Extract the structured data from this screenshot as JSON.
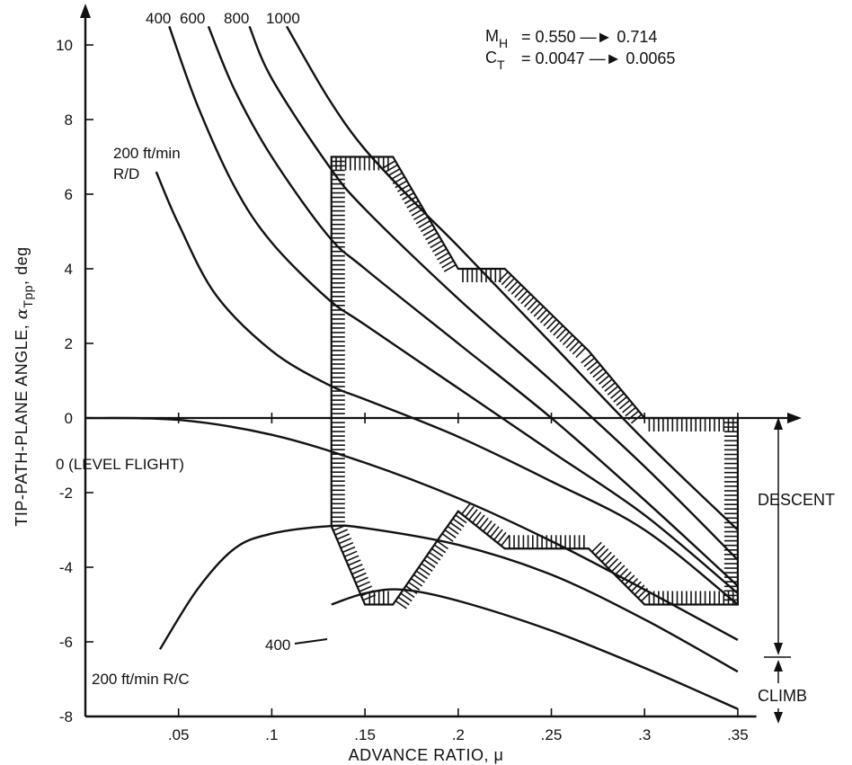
{
  "chart_data": {
    "type": "line",
    "xlabel": "ADVANCE RATIO, μ",
    "ylabel_main": "TIP-PATH-PLANE ANGLE, ",
    "ylabel_alpha": "α",
    "ylabel_sub": "Tpp",
    "ylabel_tail": ", deg",
    "xlim": [
      0,
      0.36
    ],
    "ylim": [
      -8,
      10.5
    ],
    "x_ticks": [
      {
        "v": 0.05,
        "label": ".05"
      },
      {
        "v": 0.1,
        "label": ".1"
      },
      {
        "v": 0.15,
        "label": ".15"
      },
      {
        "v": 0.2,
        "label": ".2"
      },
      {
        "v": 0.25,
        "label": ".25"
      },
      {
        "v": 0.3,
        "label": ".3"
      },
      {
        "v": 0.35,
        "label": ".35"
      }
    ],
    "y_ticks": [
      {
        "v": 10,
        "label": "10"
      },
      {
        "v": 8,
        "label": "8"
      },
      {
        "v": 6,
        "label": "6"
      },
      {
        "v": 4,
        "label": "4"
      },
      {
        "v": 2,
        "label": "2"
      },
      {
        "v": 0,
        "label": "0"
      },
      {
        "v": -2,
        "label": "-2"
      },
      {
        "v": -4,
        "label": "-4"
      },
      {
        "v": -6,
        "label": "-6"
      },
      {
        "v": -8,
        "label": "-8"
      }
    ],
    "series": [
      {
        "name": "1000",
        "x": [
          0.108,
          0.13,
          0.15,
          0.18,
          0.2,
          0.25,
          0.3,
          0.35
        ],
        "y": [
          10.5,
          8.6,
          7.2,
          5.6,
          4.6,
          2.0,
          -0.6,
          -3.0
        ]
      },
      {
        "name": "800",
        "x": [
          0.088,
          0.1,
          0.13,
          0.15,
          0.2,
          0.25,
          0.3,
          0.35
        ],
        "y": [
          10.5,
          9.1,
          6.8,
          5.6,
          3.2,
          1.0,
          -1.3,
          -3.8
        ]
      },
      {
        "name": "600",
        "x": [
          0.066,
          0.08,
          0.1,
          0.13,
          0.15,
          0.2,
          0.25,
          0.3,
          0.35
        ],
        "y": [
          10.5,
          8.8,
          7.0,
          4.9,
          4.0,
          2.0,
          0.0,
          -2.2,
          -4.5
        ]
      },
      {
        "name": "400",
        "x": [
          0.045,
          0.06,
          0.08,
          0.1,
          0.13,
          0.15,
          0.2,
          0.25,
          0.3,
          0.35
        ],
        "y": [
          10.5,
          8.4,
          6.2,
          4.7,
          3.2,
          2.5,
          0.8,
          -0.9,
          -2.6,
          -4.7
        ]
      },
      {
        "name": "200 ft/min R/D",
        "x": [
          0.038,
          0.05,
          0.07,
          0.1,
          0.13,
          0.15,
          0.2,
          0.25,
          0.3,
          0.35
        ],
        "y": [
          6.6,
          5.2,
          3.3,
          1.8,
          0.9,
          0.5,
          -0.5,
          -1.7,
          -3.0,
          -5.0
        ]
      },
      {
        "name": "0 (LEVEL FLIGHT)",
        "x": [
          0.0,
          0.05,
          0.1,
          0.15,
          0.2,
          0.25,
          0.3,
          0.35
        ],
        "y": [
          0.0,
          -0.05,
          -0.45,
          -1.2,
          -2.15,
          -3.3,
          -4.6,
          -5.95
        ]
      },
      {
        "name": "200 ft/min R/C",
        "x": [
          0.04,
          0.06,
          0.08,
          0.1,
          0.13,
          0.15,
          0.2,
          0.25,
          0.3,
          0.35
        ],
        "y": [
          -6.2,
          -4.6,
          -3.5,
          -3.1,
          -2.9,
          -2.95,
          -3.4,
          -4.2,
          -5.4,
          -6.8
        ]
      },
      {
        "name": "400",
        "x": [
          0.132,
          0.15,
          0.17,
          0.2,
          0.25,
          0.3,
          0.35
        ],
        "y": [
          -5.0,
          -4.7,
          -4.6,
          -4.9,
          -5.7,
          -6.7,
          -7.8
        ]
      }
    ],
    "curve_labels": {
      "top_400": "400",
      "top_600": "600",
      "top_800": "800",
      "top_1000": "1000",
      "rd_line1": "200 ft/min",
      "rd_line2": "R/D",
      "level": "0 (LEVEL FLIGHT)",
      "rc": "200 ft/min R/C",
      "rc400": "400"
    },
    "annotations": {
      "mh_sym": "M",
      "mh_sub": "H",
      "mh_vals": "= 0.550 —► 0.714",
      "ct_sym": "C",
      "ct_sub": "T",
      "ct_vals": "= 0.0047 —► 0.0065",
      "descent": "DESCENT",
      "climb": "CLIMB"
    },
    "boundary_region": {
      "x": [
        0.132,
        0.165,
        0.2,
        0.225,
        0.27,
        0.3,
        0.35,
        0.35,
        0.3,
        0.27,
        0.225,
        0.2,
        0.19,
        0.165,
        0.15,
        0.132
      ],
      "y": [
        7.0,
        7.0,
        4.0,
        4.0,
        1.8,
        0.0,
        0.0,
        -5.0,
        -5.0,
        -3.5,
        -3.5,
        -2.5,
        -3.2,
        -5.0,
        -5.0,
        -2.9
      ]
    },
    "grid": false,
    "colors": {
      "line": "#111111",
      "background": "#ffffff"
    }
  }
}
